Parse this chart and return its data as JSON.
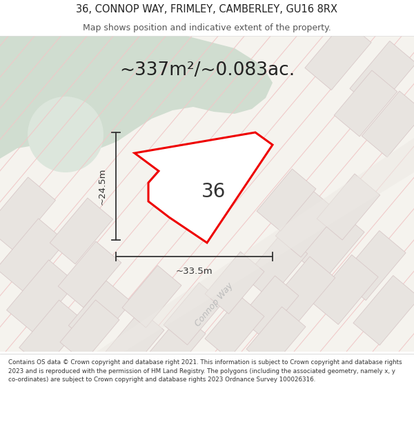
{
  "title_line1": "36, CONNOP WAY, FRIMLEY, CAMBERLEY, GU16 8RX",
  "title_line2": "Map shows position and indicative extent of the property.",
  "area_text": "~337m²/~0.083ac.",
  "dimension_width": "~33.5m",
  "dimension_height": "~24.5m",
  "plot_number": "36",
  "road_label": "Connop Way",
  "footer_text": "Contains OS data © Crown copyright and database right 2021. This information is subject to Crown copyright and database rights 2023 and is reproduced with the permission of HM Land Registry. The polygons (including the associated geometry, namely x, y co-ordinates) are subject to Crown copyright and database rights 2023 Ordnance Survey 100026316.",
  "map_bg": "#f5f3ee",
  "green_color": "#d0ddd0",
  "green_circle_color": "#dce6dc",
  "hatch_color": "#f0c8c8",
  "block_face": "#e8e4e0",
  "block_edge": "#d8c8c8",
  "plot_fill": "#ffffff",
  "plot_edge": "#ee0000",
  "dim_color": "#333333",
  "road_label_color": "#bbbbbb",
  "text_dark": "#222222",
  "text_mid": "#555555",
  "fig_width": 6.0,
  "fig_height": 6.25,
  "title_fontsize": 10.5,
  "subtitle_fontsize": 9.0,
  "area_fontsize": 19,
  "dim_fontsize": 9.5,
  "plot_num_fontsize": 20,
  "road_label_fontsize": 9,
  "footer_fontsize": 6.3
}
